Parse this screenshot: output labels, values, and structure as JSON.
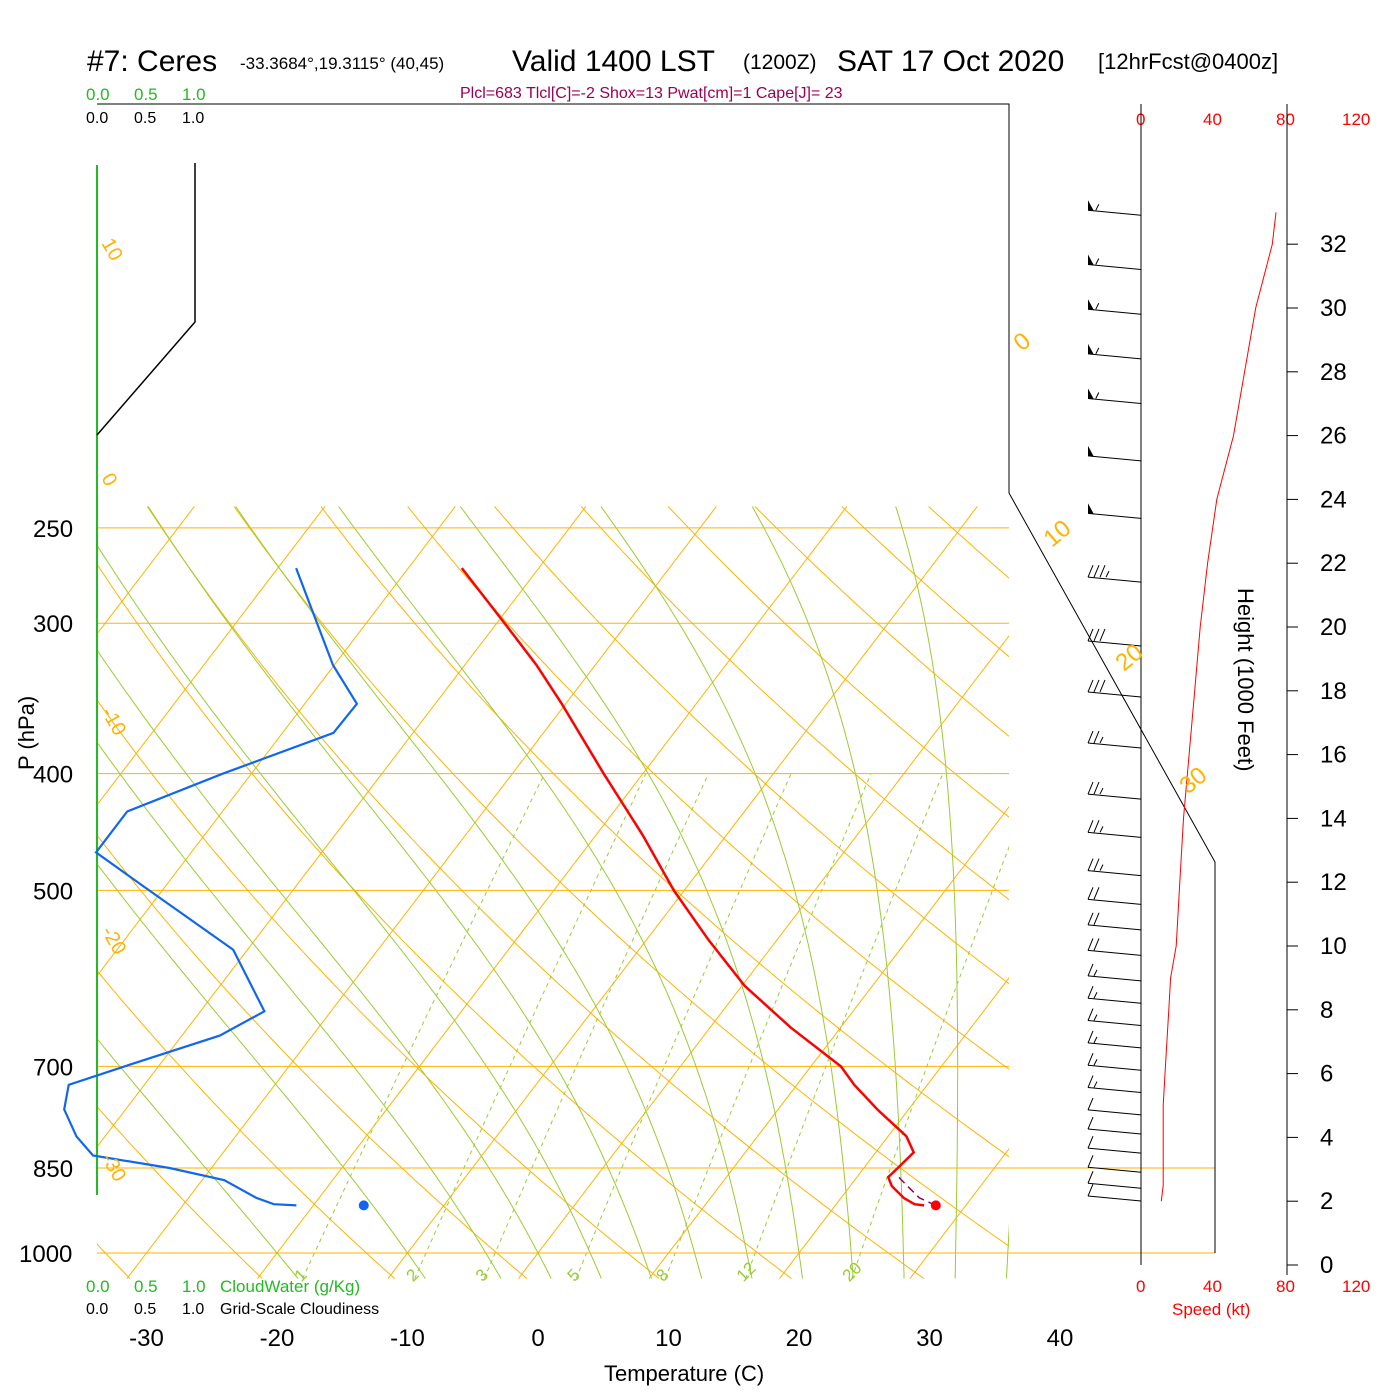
{
  "header": {
    "station": "#7: Ceres",
    "coords": "-33.3684°,19.3115° (40,45)",
    "valid": "Valid 1400 LST",
    "zulu": "(1200Z)",
    "date": "SAT 17 Oct 2020",
    "forecast": "[12hrFcst@0400z]",
    "params": "Plcl=683 Tlcl[C]=-2 Shox=13 Pwat[cm]=1 Cape[J]= 23"
  },
  "cloud_scale": {
    "water_ticks": [
      "0.0",
      "0.5",
      "1.0"
    ],
    "cloud_ticks": [
      "0.0",
      "0.5",
      "1.0"
    ],
    "water_label": "CloudWater (g/Kg)",
    "cloud_label": "Grid-Scale Cloudiness"
  },
  "speed_scale": {
    "ticks": [
      "0",
      "40",
      "80",
      "120"
    ],
    "label": "Speed (kt)"
  },
  "axes": {
    "pressure_label": "P (hPa)",
    "temperature_label": "Temperature (C)",
    "height_label": "Height (1000 Feet)",
    "pressure_ticks": [
      "250",
      "300",
      "400",
      "500",
      "700",
      "850",
      "1000"
    ],
    "temperature_ticks": [
      "-30",
      "-20",
      "-10",
      "0",
      "10",
      "20",
      "30",
      "40"
    ],
    "height_ticks": [
      "0",
      "2",
      "4",
      "6",
      "8",
      "10",
      "12",
      "14",
      "16",
      "18",
      "20",
      "22",
      "24",
      "26",
      "28",
      "30",
      "32"
    ],
    "isotherm_labels": [
      "10",
      "0",
      "-10",
      "-20",
      "-30",
      "0",
      "10",
      "20",
      "30"
    ],
    "mixing_ratio_labels": [
      "1",
      "2",
      "3",
      "5",
      "8",
      "12",
      "20"
    ]
  },
  "colors": {
    "isotherm": "#ffb300",
    "moist_adiabat": "#99cc33",
    "temperature": "#ff0000",
    "dewpoint": "#1166ee",
    "wind_speed": "#ff0000",
    "cloud_water": "#22bb22",
    "params": "#990055"
  },
  "chart_data": {
    "type": "skew-t",
    "skew_degC_per_log_decade_note": "",
    "pressure_range": [
      250,
      1000
    ],
    "temperature_range_at_1000hPa": [
      -34,
      46
    ],
    "temperature_profile": [
      {
        "p": 913,
        "t": 26.8
      },
      {
        "p": 911,
        "t": 26.0
      },
      {
        "p": 900,
        "t": 24.8
      },
      {
        "p": 880,
        "t": 23.2
      },
      {
        "p": 865,
        "t": 22.4
      },
      {
        "p": 850,
        "t": 22.6
      },
      {
        "p": 825,
        "t": 22.9
      },
      {
        "p": 800,
        "t": 21.4
      },
      {
        "p": 760,
        "t": 17.6
      },
      {
        "p": 725,
        "t": 14.4
      },
      {
        "p": 700,
        "t": 12.3
      },
      {
        "p": 650,
        "t": 6.2
      },
      {
        "p": 600,
        "t": 0.2
      },
      {
        "p": 550,
        "t": -5.2
      },
      {
        "p": 500,
        "t": -10.8
      },
      {
        "p": 450,
        "t": -16.4
      },
      {
        "p": 400,
        "t": -23.0
      },
      {
        "p": 350,
        "t": -30.3
      },
      {
        "p": 325,
        "t": -34.5
      },
      {
        "p": 300,
        "t": -39.4
      },
      {
        "p": 270,
        "t": -45.9
      }
    ],
    "dewpoint_profile": [
      {
        "p": 913,
        "t": -21.3
      },
      {
        "p": 911,
        "t": -23.1
      },
      {
        "p": 900,
        "t": -24.8
      },
      {
        "p": 870,
        "t": -28.3
      },
      {
        "p": 850,
        "t": -33.2
      },
      {
        "p": 830,
        "t": -39.8
      },
      {
        "p": 800,
        "t": -42.2
      },
      {
        "p": 760,
        "t": -44.7
      },
      {
        "p": 725,
        "t": -45.8
      },
      {
        "p": 700,
        "t": -42.6
      },
      {
        "p": 660,
        "t": -37.1
      },
      {
        "p": 630,
        "t": -35.1
      },
      {
        "p": 560,
        "t": -41.1
      },
      {
        "p": 500,
        "t": -51.0
      },
      {
        "p": 465,
        "t": -57.3
      },
      {
        "p": 430,
        "t": -57.3
      },
      {
        "p": 400,
        "t": -52.2
      },
      {
        "p": 370,
        "t": -46.1
      },
      {
        "p": 350,
        "t": -46.0
      },
      {
        "p": 325,
        "t": -50.1
      },
      {
        "p": 270,
        "t": -58.6
      }
    ],
    "surface_temperature_marker": {
      "p": 913,
      "t": 27.7
    },
    "surface_dewpoint_marker": {
      "p": 913,
      "t": -21.5
    },
    "parcel_path": [
      {
        "p": 913,
        "t": 27.7
      },
      {
        "p": 900,
        "t": 26.0
      },
      {
        "p": 880,
        "t": 24.4
      },
      {
        "p": 865,
        "t": 23.2
      }
    ],
    "wind_speed_profile_kt": [
      {
        "h": 2,
        "v": 11
      },
      {
        "h": 2.5,
        "v": 12
      },
      {
        "h": 3,
        "v": 12
      },
      {
        "h": 4,
        "v": 12
      },
      {
        "h": 5,
        "v": 12
      },
      {
        "h": 6,
        "v": 13
      },
      {
        "h": 7,
        "v": 14
      },
      {
        "h": 8,
        "v": 15
      },
      {
        "h": 9,
        "v": 16
      },
      {
        "h": 10,
        "v": 19
      },
      {
        "h": 12,
        "v": 21
      },
      {
        "h": 14,
        "v": 23
      },
      {
        "h": 16,
        "v": 26
      },
      {
        "h": 18,
        "v": 29
      },
      {
        "h": 20,
        "v": 32
      },
      {
        "h": 22,
        "v": 36
      },
      {
        "h": 24,
        "v": 41
      },
      {
        "h": 26,
        "v": 50
      },
      {
        "h": 28,
        "v": 56
      },
      {
        "h": 30,
        "v": 62
      },
      {
        "h": 32,
        "v": 71
      },
      {
        "h": 33,
        "v": 73
      }
    ],
    "wind_barbs": [
      {
        "h": 33,
        "speed": 55
      },
      {
        "h": 31.3,
        "speed": 55
      },
      {
        "h": 29.9,
        "speed": 55
      },
      {
        "h": 28.5,
        "speed": 55
      },
      {
        "h": 27.1,
        "speed": 55
      },
      {
        "h": 25.3,
        "speed": 50
      },
      {
        "h": 23.5,
        "speed": 50
      },
      {
        "h": 21.5,
        "speed": 35
      },
      {
        "h": 19.5,
        "speed": 30
      },
      {
        "h": 17.9,
        "speed": 30
      },
      {
        "h": 16.3,
        "speed": 25
      },
      {
        "h": 14.7,
        "speed": 25
      },
      {
        "h": 13.5,
        "speed": 25
      },
      {
        "h": 12.3,
        "speed": 25
      },
      {
        "h": 11.4,
        "speed": 20
      },
      {
        "h": 10.6,
        "speed": 20
      },
      {
        "h": 9.8,
        "speed": 20
      },
      {
        "h": 9.0,
        "speed": 15
      },
      {
        "h": 8.3,
        "speed": 15
      },
      {
        "h": 7.6,
        "speed": 15
      },
      {
        "h": 6.9,
        "speed": 15
      },
      {
        "h": 6.2,
        "speed": 15
      },
      {
        "h": 5.5,
        "speed": 15
      },
      {
        "h": 4.8,
        "speed": 10
      },
      {
        "h": 4.2,
        "speed": 10
      },
      {
        "h": 3.6,
        "speed": 10
      },
      {
        "h": 3.0,
        "speed": 10
      },
      {
        "h": 2.5,
        "speed": 10
      },
      {
        "h": 2.1,
        "speed": 10
      }
    ],
    "cloud_fraction": [
      {
        "p": 270,
        "c": 0.0
      },
      {
        "p": 325,
        "c": 0.0
      },
      {
        "p": 375,
        "c": 0.0
      }
    ],
    "height_ticks_kft": [
      0,
      2,
      4,
      6,
      8,
      10,
      12,
      14,
      16,
      18,
      20,
      22,
      24,
      26,
      28,
      30,
      32
    ],
    "speed_range_kt": [
      0,
      120
    ],
    "mixing_ratios_gkg": [
      1,
      2,
      3,
      5,
      8,
      12,
      20
    ]
  }
}
